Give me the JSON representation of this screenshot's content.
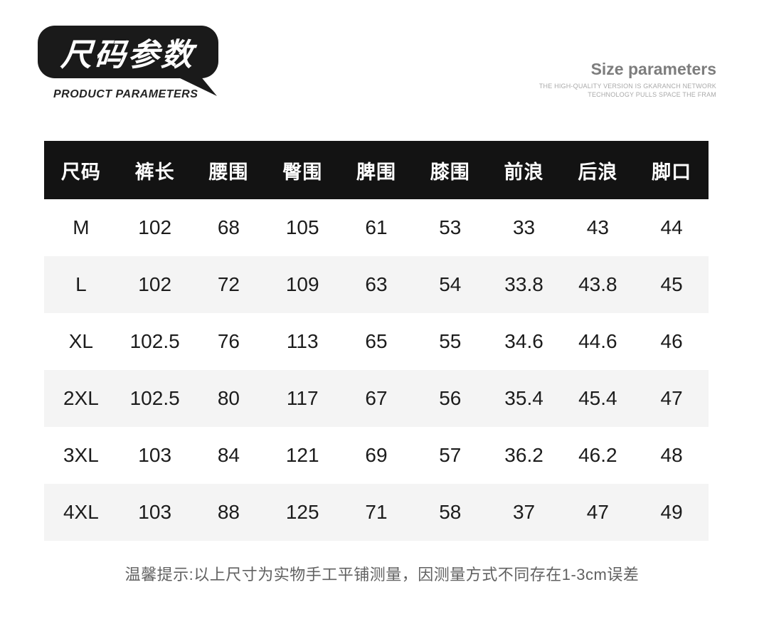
{
  "badge": {
    "title": "尺码参数",
    "subtitle": "PRODUCT PARAMETERS"
  },
  "header_right": {
    "title": "Size parameters",
    "line1": "THE HIGH-QUALITY VERSION IS GKARANCH NETWORK",
    "line2": "TECHNOLOGY PULLS SPACE THE FRAM"
  },
  "table": {
    "columns": [
      "尺码",
      "裤长",
      "腰围",
      "臀围",
      "脾围",
      "膝围",
      "前浪",
      "后浪",
      "脚口"
    ],
    "rows": [
      [
        "M",
        "102",
        "68",
        "105",
        "61",
        "53",
        "33",
        "43",
        "44"
      ],
      [
        "L",
        "102",
        "72",
        "109",
        "63",
        "54",
        "33.8",
        "43.8",
        "45"
      ],
      [
        "XL",
        "102.5",
        "76",
        "113",
        "65",
        "55",
        "34.6",
        "44.6",
        "46"
      ],
      [
        "2XL",
        "102.5",
        "80",
        "117",
        "67",
        "56",
        "35.4",
        "45.4",
        "47"
      ],
      [
        "3XL",
        "103",
        "84",
        "121",
        "69",
        "57",
        "36.2",
        "46.2",
        "48"
      ],
      [
        "4XL",
        "103",
        "88",
        "125",
        "71",
        "58",
        "37",
        "47",
        "49"
      ]
    ]
  },
  "note": "温馨提示:以上尺寸为实物手工平铺测量，因测量方式不同存在1-3cm误差",
  "colors": {
    "badge_bg": "#1a1a1a",
    "header_bg": "#131313",
    "stripe_bg": "#f4f4f4",
    "note_text": "#616161"
  }
}
